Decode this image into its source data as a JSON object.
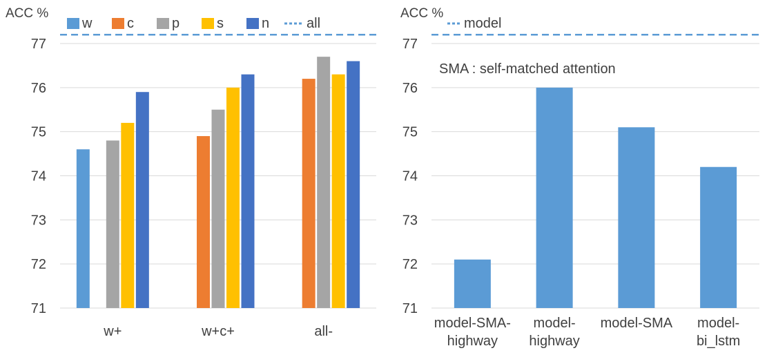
{
  "chart_data": [
    {
      "type": "bar",
      "ylabel": "ACC %",
      "ylim": [
        71,
        77.5
      ],
      "yticks": [
        71,
        72,
        73,
        74,
        75,
        76,
        77
      ],
      "grid": true,
      "legend": "top",
      "categories": [
        "w+",
        "w+c+",
        "all-"
      ],
      "series": [
        {
          "name": "w",
          "color": "#5b9bd5",
          "values": [
            74.6,
            null,
            null
          ]
        },
        {
          "name": "c",
          "color": "#ed7d31",
          "values": [
            null,
            74.9,
            76.2
          ]
        },
        {
          "name": "p",
          "color": "#a5a5a5",
          "values": [
            74.8,
            75.5,
            76.7
          ]
        },
        {
          "name": "s",
          "color": "#ffc000",
          "values": [
            75.2,
            76.0,
            76.3
          ]
        },
        {
          "name": "n",
          "color": "#4472c4",
          "values": [
            75.9,
            76.3,
            76.6
          ]
        }
      ],
      "reference_line": {
        "name": "all",
        "value": 77.2,
        "color": "#5b9bd5",
        "style": "dashed"
      }
    },
    {
      "type": "bar",
      "ylabel": "ACC %",
      "ylim": [
        71,
        77.5
      ],
      "yticks": [
        71,
        72,
        73,
        74,
        75,
        76,
        77
      ],
      "grid": true,
      "legend": "top-left",
      "annotation": "SMA : self-matched attention",
      "categories": [
        [
          "model-SMA-",
          "highway"
        ],
        [
          "model-",
          "highway"
        ],
        [
          "model-SMA"
        ],
        [
          "model-",
          "bi_lstm"
        ]
      ],
      "series": [
        {
          "color": "#5b9bd5",
          "values": [
            72.1,
            76.0,
            75.1,
            74.2
          ]
        }
      ],
      "reference_line": {
        "name": "model",
        "value": 77.2,
        "color": "#5b9bd5",
        "style": "dashed"
      }
    }
  ]
}
